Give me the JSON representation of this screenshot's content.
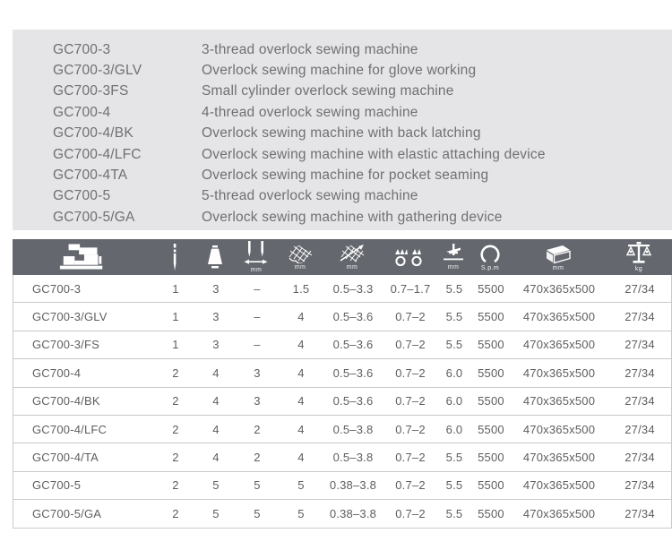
{
  "colors": {
    "panel_bg": "#e5e5e7",
    "header_bg": "#64676d",
    "list_text": "#707072",
    "table_text": "#5e5e60",
    "row_border": "#c9c9c9",
    "icon_color": "#ffffff"
  },
  "model_list": {
    "items": [
      {
        "model": "GC700-3",
        "description": "3-thread overlock sewing machine"
      },
      {
        "model": "GC700-3/GLV",
        "description": "Overlock sewing machine for glove working"
      },
      {
        "model": "GC700-3FS",
        "description": "Small cylinder overlock sewing machine"
      },
      {
        "model": "GC700-4",
        "description": "4-thread overlock sewing machine"
      },
      {
        "model": "GC700-4/BK",
        "description": "Overlock sewing machine with back latching"
      },
      {
        "model": "GC700-4/LFC",
        "description": "Overlock sewing machine with elastic attaching device"
      },
      {
        "model": "GC700-4TA",
        "description": "Overlock sewing machine for pocket seaming"
      },
      {
        "model": "GC700-5",
        "description": "5-thread overlock sewing machine"
      },
      {
        "model": "GC700-5/GA",
        "description": "Overlock sewing machine with gathering device"
      }
    ]
  },
  "spec_table": {
    "columns": [
      {
        "icon": "sewing-machine-icon",
        "meaning": "model",
        "unit": ""
      },
      {
        "icon": "needle-icon",
        "meaning": "number of needles",
        "unit": ""
      },
      {
        "icon": "thread-cone-icon",
        "meaning": "number of threads",
        "unit": ""
      },
      {
        "icon": "needle-gauge-icon",
        "meaning": "needle gauge",
        "unit": "mm"
      },
      {
        "icon": "overedge-width-icon",
        "meaning": "overedging width",
        "unit": "mm"
      },
      {
        "icon": "stitch-length-icon",
        "meaning": "stitch length",
        "unit": "mm"
      },
      {
        "icon": "differential-feed-icon",
        "meaning": "differential feed ratio",
        "unit": ""
      },
      {
        "icon": "presser-foot-lift-icon",
        "meaning": "presser foot lift",
        "unit": "mm"
      },
      {
        "icon": "speed-icon",
        "meaning": "max sewing speed",
        "unit": "S.p.m"
      },
      {
        "icon": "packing-size-icon",
        "meaning": "packing dimensions",
        "unit": "mm"
      },
      {
        "icon": "weight-icon",
        "meaning": "net/gross weight",
        "unit": "kg"
      }
    ],
    "rows": [
      [
        "GC700-3",
        "1",
        "3",
        "–",
        "1.5",
        "0.5–3.3",
        "0.7–1.7",
        "5.5",
        "5500",
        "470x365x500",
        "27/34"
      ],
      [
        "GC700-3/GLV",
        "1",
        "3",
        "–",
        "4",
        "0.5–3.6",
        "0.7–2",
        "5.5",
        "5500",
        "470x365x500",
        "27/34"
      ],
      [
        "GC700-3/FS",
        "1",
        "3",
        "–",
        "4",
        "0.5–3.6",
        "0.7–2",
        "5.5",
        "5500",
        "470x365x500",
        "27/34"
      ],
      [
        "GC700-4",
        "2",
        "4",
        "3",
        "4",
        "0.5–3.6",
        "0.7–2",
        "6.0",
        "5500",
        "470x365x500",
        "27/34"
      ],
      [
        "GC700-4/BK",
        "2",
        "4",
        "3",
        "4",
        "0.5–3.6",
        "0.7–2",
        "6.0",
        "5500",
        "470x365x500",
        "27/34"
      ],
      [
        "GC700-4/LFC",
        "2",
        "4",
        "2",
        "4",
        "0.5–3.8",
        "0.7–2",
        "6.0",
        "5500",
        "470x365x500",
        "27/34"
      ],
      [
        "GC700-4/TA",
        "2",
        "4",
        "2",
        "4",
        "0.5–3.8",
        "0.7–2",
        "5.5",
        "5500",
        "470x365x500",
        "27/34"
      ],
      [
        "GC700-5",
        "2",
        "5",
        "5",
        "5",
        "0.38–3.8",
        "0.7–2",
        "5.5",
        "5500",
        "470x365x500",
        "27/34"
      ],
      [
        "GC700-5/GA",
        "2",
        "5",
        "5",
        "5",
        "0.38–3.8",
        "0.7–2",
        "5.5",
        "5500",
        "470x365x500",
        "27/34"
      ]
    ]
  }
}
